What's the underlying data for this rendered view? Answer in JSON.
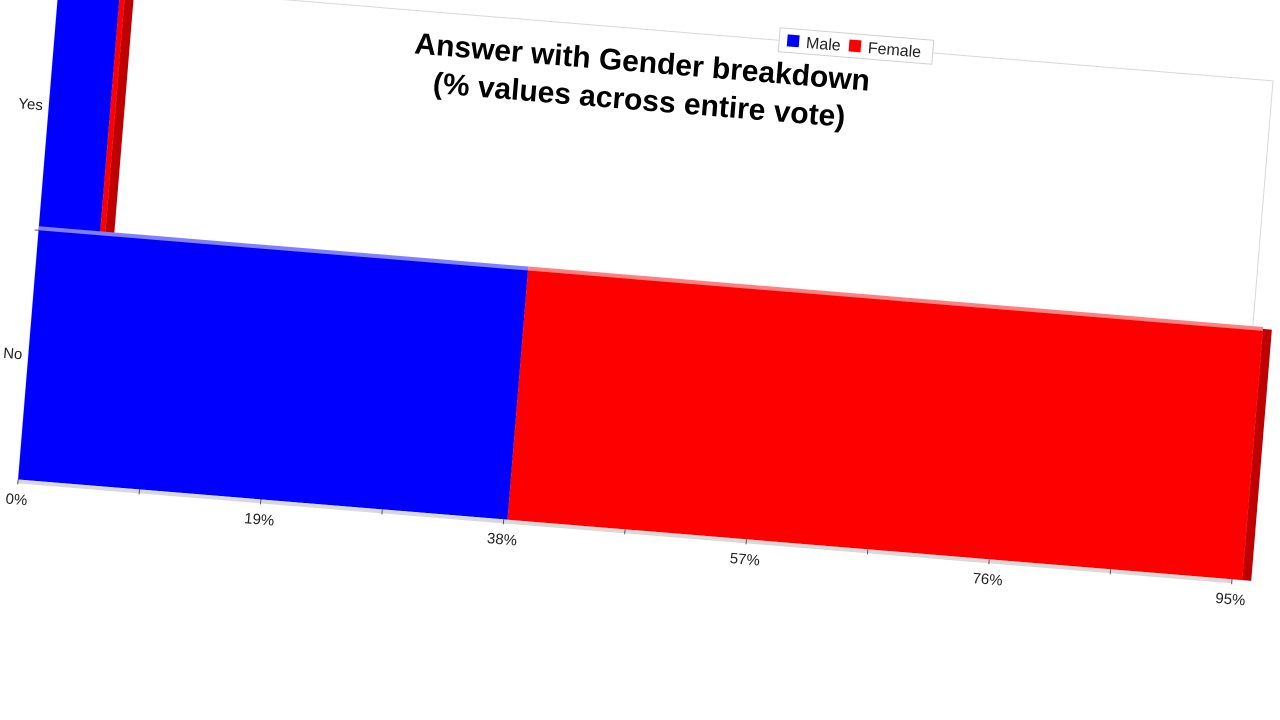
{
  "chart_data": {
    "type": "bar",
    "orientation": "horizontal",
    "stacked": true,
    "three_d": true,
    "title": [
      "Answer with Gender breakdown",
      "(% values across entire vote)"
    ],
    "categories": [
      "Yes",
      "No"
    ],
    "series": [
      {
        "name": "Male",
        "values": [
          4.8,
          38.3
        ],
        "color": "#0000ff"
      },
      {
        "name": "Female",
        "values": [
          0.4,
          57.5
        ],
        "color": "#ff0000"
      }
    ],
    "xlim": [
      0,
      95
    ],
    "xticks": [
      "0%",
      "19%",
      "38%",
      "57%",
      "76%",
      "95%"
    ],
    "grid": false,
    "legend_position": "top-right"
  }
}
